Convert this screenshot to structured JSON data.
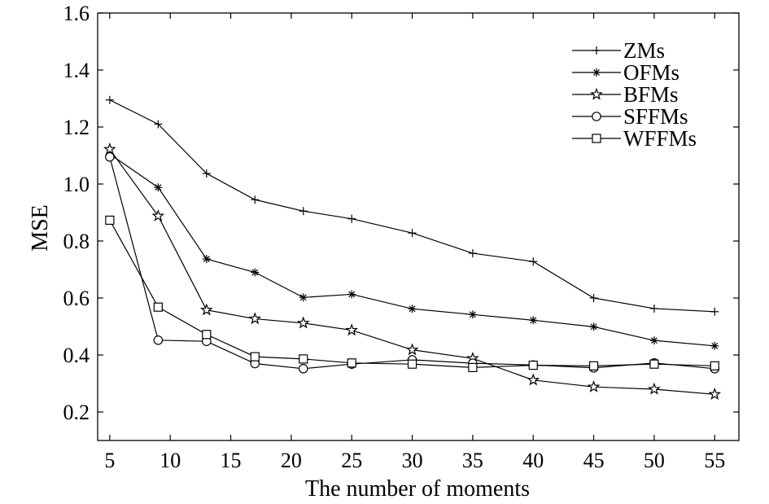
{
  "chart_data": {
    "type": "line",
    "title": "",
    "xlabel": "The number of moments",
    "ylabel": "MSE",
    "xlim": [
      4,
      57
    ],
    "ylim": [
      0.1,
      1.6
    ],
    "xticks": [
      5,
      10,
      15,
      20,
      25,
      30,
      35,
      40,
      45,
      50,
      55
    ],
    "yticks": [
      0.2,
      0.4,
      0.6,
      0.8,
      1.0,
      1.2,
      1.4,
      1.6
    ],
    "ytick_labels": [
      "0.2",
      "0.4",
      "0.6",
      "0.8",
      "1.0",
      "1.2",
      "1.4",
      "1.6"
    ],
    "grid": false,
    "legend_position": "top-right",
    "x": [
      5,
      9,
      13,
      17,
      21,
      25,
      30,
      35,
      40,
      45,
      50,
      55
    ],
    "series": [
      {
        "name": "ZMs",
        "marker": "plus",
        "values": [
          1.295,
          1.21,
          1.037,
          0.945,
          0.905,
          0.878,
          0.828,
          0.757,
          0.728,
          0.6,
          0.563,
          0.552
        ]
      },
      {
        "name": "OFMs",
        "marker": "asterisk",
        "values": [
          1.105,
          0.988,
          0.737,
          0.69,
          0.602,
          0.613,
          0.562,
          0.542,
          0.522,
          0.499,
          0.451,
          0.432
        ]
      },
      {
        "name": "BFMs",
        "marker": "star",
        "values": [
          1.122,
          0.888,
          0.558,
          0.527,
          0.512,
          0.487,
          0.418,
          0.388,
          0.312,
          0.288,
          0.28,
          0.262
        ]
      },
      {
        "name": "SFFMs",
        "marker": "circle",
        "values": [
          1.095,
          0.452,
          0.448,
          0.37,
          0.352,
          0.368,
          0.383,
          0.371,
          0.365,
          0.355,
          0.372,
          0.352
        ]
      },
      {
        "name": "WFFMs",
        "marker": "square",
        "values": [
          0.873,
          0.568,
          0.472,
          0.394,
          0.386,
          0.372,
          0.368,
          0.356,
          0.364,
          0.362,
          0.368,
          0.362
        ]
      }
    ]
  }
}
